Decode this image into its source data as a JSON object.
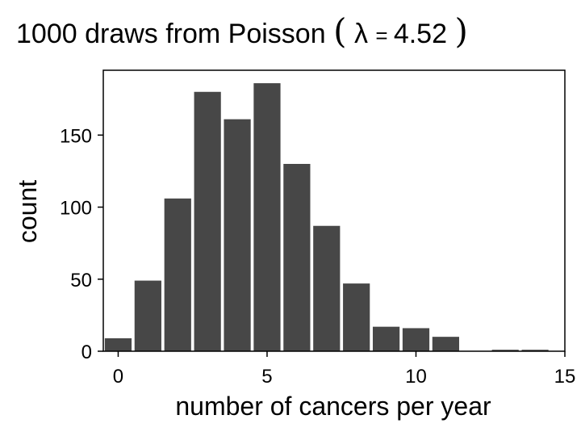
{
  "chart_data": {
    "type": "bar",
    "title": {
      "prefix": "1000 draws from Poisson",
      "open_paren": "(",
      "lambda": "λ",
      "equals": " = ",
      "value": "4.52",
      "close_paren": ")"
    },
    "xlabel": "number of cancers per year",
    "ylabel": "count",
    "x": [
      0,
      1,
      2,
      3,
      4,
      5,
      6,
      7,
      8,
      9,
      10,
      11,
      12,
      13,
      14
    ],
    "values": [
      9,
      49,
      106,
      180,
      161,
      186,
      130,
      87,
      47,
      17,
      16,
      10,
      0,
      1,
      1
    ],
    "xlim": [
      -0.5,
      15
    ],
    "ylim": [
      0,
      195
    ],
    "xticks": [
      0,
      5,
      10,
      15
    ],
    "yticks": [
      0,
      50,
      100,
      150
    ],
    "bar_color": "#474747",
    "grid": false
  }
}
